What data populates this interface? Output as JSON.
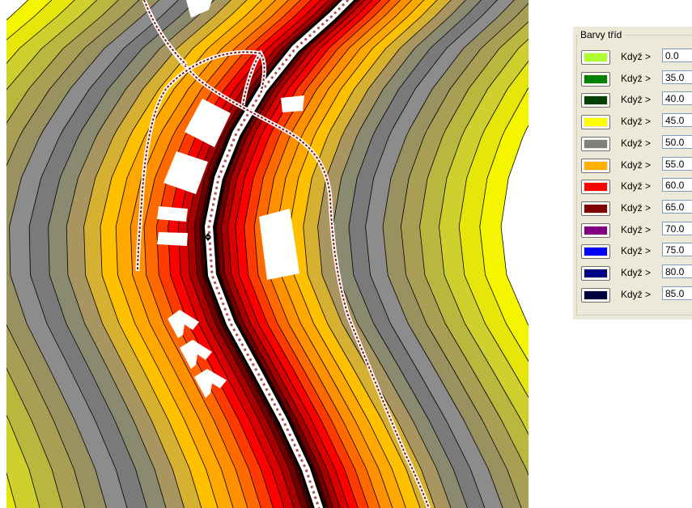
{
  "panel": {
    "group_title": "Barvy tříd",
    "classes": [
      {
        "color": "#adff2f",
        "label": "Když >",
        "value": "0.0"
      },
      {
        "color": "#008000",
        "label": "Když >",
        "value": "35.0"
      },
      {
        "color": "#004000",
        "label": "Když >",
        "value": "40.0"
      },
      {
        "color": "#ffff00",
        "label": "Když >",
        "value": "45.0"
      },
      {
        "color": "#808080",
        "label": "Když >",
        "value": "50.0"
      },
      {
        "color": "#ffb000",
        "label": "Když >",
        "value": "55.0"
      },
      {
        "color": "#ff0000",
        "label": "Když >",
        "value": "60.0"
      },
      {
        "color": "#800000",
        "label": "Když >",
        "value": "65.0"
      },
      {
        "color": "#800080",
        "label": "Když >",
        "value": "70.0"
      },
      {
        "color": "#0000ff",
        "label": "Když >",
        "value": "75.0"
      },
      {
        "color": "#000080",
        "label": "Když >",
        "value": "80.0"
      },
      {
        "color": "#000040",
        "label": "Když >",
        "value": "85.0"
      }
    ]
  },
  "map": {
    "band_colors": [
      "#f5f500",
      "#e6e60a",
      "#cfcf2e",
      "#b8b83e",
      "#a89f55",
      "#9a9160",
      "#8c8c8c",
      "#7a7a7a",
      "#8a8a70",
      "#a89560",
      "#d6b030",
      "#ffc000",
      "#ffa800",
      "#ff9000",
      "#ff6a00",
      "#ff3a00",
      "#ff0000",
      "#d80000",
      "#a80000",
      "#700000",
      "#400000",
      "#100000"
    ]
  }
}
